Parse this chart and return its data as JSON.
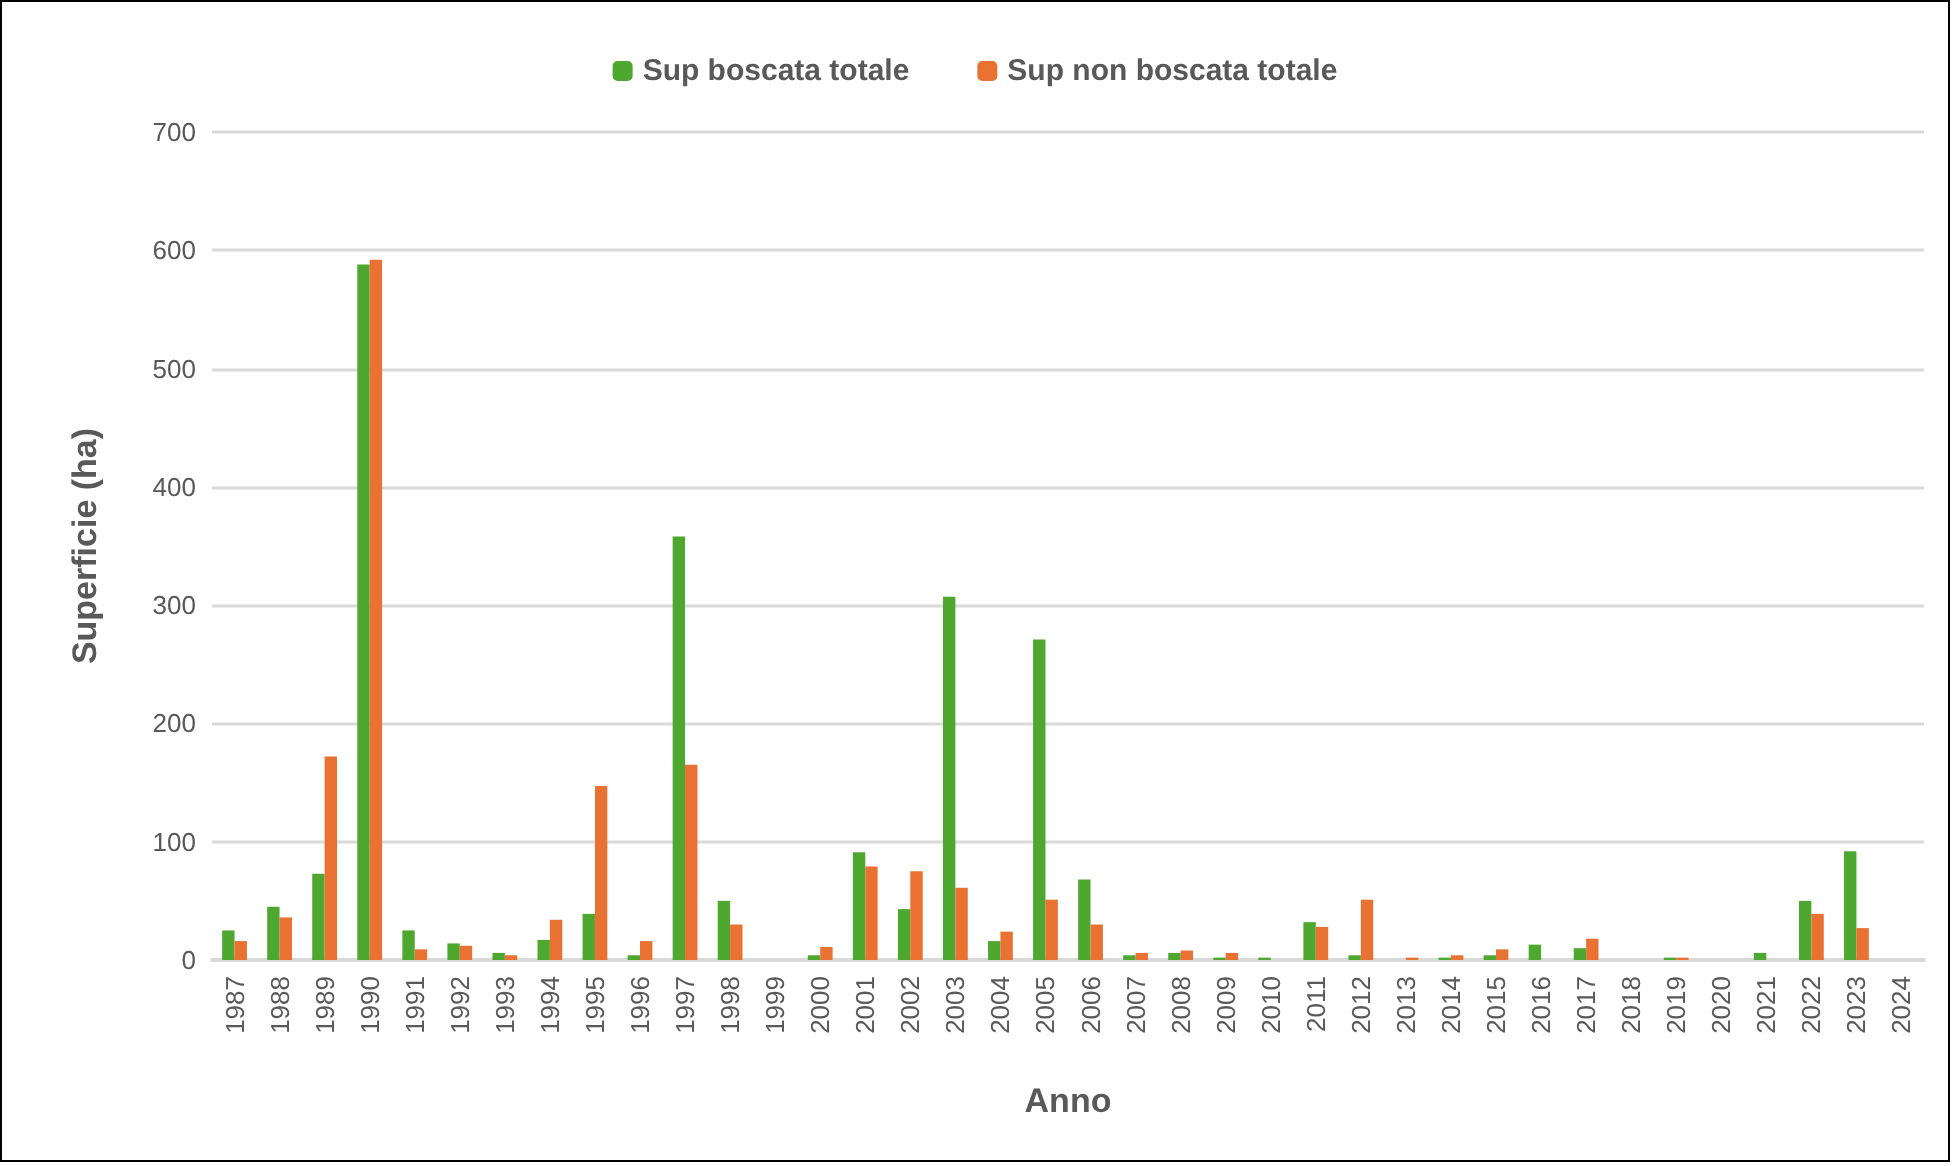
{
  "chart_data": {
    "type": "bar",
    "xlabel": "Anno",
    "ylabel": "Superficie (ha)",
    "categories": [
      "1987",
      "1988",
      "1989",
      "1990",
      "1991",
      "1992",
      "1993",
      "1994",
      "1995",
      "1996",
      "1997",
      "1998",
      "1999",
      "2000",
      "2001",
      "2002",
      "2003",
      "2004",
      "2005",
      "2006",
      "2007",
      "2008",
      "2009",
      "2010",
      "2011",
      "2012",
      "2013",
      "2014",
      "2015",
      "2016",
      "2017",
      "2018",
      "2019",
      "2020",
      "2021",
      "2022",
      "2023",
      "2024"
    ],
    "series": [
      {
        "name": "Sup boscata totale",
        "color": "#4ea72e",
        "values": [
          25,
          45,
          73,
          588,
          25,
          14,
          6,
          17,
          39,
          4,
          358,
          50,
          0,
          4,
          91,
          43,
          307,
          16,
          271,
          68,
          4,
          6,
          2,
          2,
          32,
          4,
          0,
          2,
          4,
          13,
          10,
          0,
          2,
          0,
          6,
          50,
          92,
          0
        ]
      },
      {
        "name": "Sup non boscata totale",
        "color": "#e97132",
        "values": [
          16,
          36,
          172,
          592,
          9,
          12,
          4,
          34,
          147,
          16,
          165,
          30,
          0,
          11,
          79,
          75,
          61,
          24,
          51,
          30,
          6,
          8,
          6,
          0,
          28,
          51,
          2,
          4,
          9,
          0,
          18,
          0,
          2,
          0,
          0,
          39,
          27,
          0
        ]
      }
    ],
    "ylim": [
      0,
      700
    ],
    "yticks": [
      0,
      100,
      200,
      300,
      400,
      500,
      600,
      700
    ],
    "grid": "y",
    "legend": "top"
  }
}
